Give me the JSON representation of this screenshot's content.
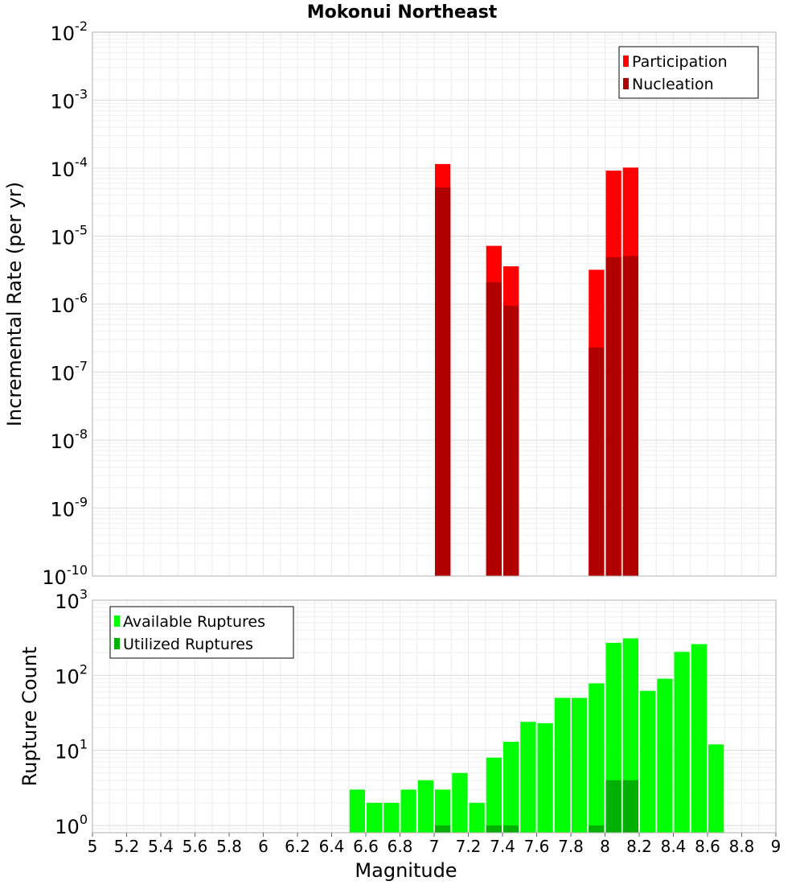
{
  "chart_data": [
    {
      "type": "bar",
      "title": "Mokonui Northeast",
      "xlabel": "",
      "ylabel": "Incremental Rate (per yr)",
      "y_scale": "log",
      "ylim": [
        1e-10,
        0.01
      ],
      "y_tick_exponents": [
        "-10",
        "-9",
        "-8",
        "-7",
        "-6",
        "-5",
        "-4",
        "-3",
        "-2"
      ],
      "y_tick_base": "10",
      "xlim": [
        5,
        9
      ],
      "bar_width": 0.1,
      "grid": true,
      "legend_position": "top-right",
      "series": [
        {
          "name": "Participation",
          "color": "#ff0000",
          "x": [
            7.05,
            7.35,
            7.45,
            7.95,
            8.05,
            8.15
          ],
          "values": [
            0.000115,
            7.2e-06,
            3.6e-06,
            3.2e-06,
            9.2e-05,
            0.000102
          ]
        },
        {
          "name": "Nucleation",
          "color": "#b00000",
          "x": [
            7.05,
            7.35,
            7.45,
            7.95,
            8.05,
            8.15
          ],
          "values": [
            5.2e-05,
            2.1e-06,
            9.5e-07,
            2.3e-07,
            4.9e-06,
            5.1e-06
          ]
        }
      ]
    },
    {
      "type": "bar",
      "title": "",
      "xlabel": "Magnitude",
      "ylabel": "Rupture Count",
      "y_scale": "log",
      "ylim": [
        0.8,
        1000
      ],
      "y_tick_exponents": [
        "0",
        "1",
        "2",
        "3"
      ],
      "y_tick_base": "10",
      "xlim": [
        5,
        9
      ],
      "x_ticks": [
        "5",
        "5.2",
        "5.4",
        "5.6",
        "5.8",
        "6",
        "6.2",
        "6.4",
        "6.6",
        "6.8",
        "7",
        "7.2",
        "7.4",
        "7.6",
        "7.8",
        "8",
        "8.2",
        "8.4",
        "8.6",
        "8.8",
        "9"
      ],
      "bar_width": 0.1,
      "grid": true,
      "legend_position": "top-left",
      "series": [
        {
          "name": "Available Ruptures",
          "color": "#00ff00",
          "x": [
            6.55,
            6.65,
            6.75,
            6.85,
            6.95,
            7.05,
            7.15,
            7.25,
            7.35,
            7.45,
            7.55,
            7.65,
            7.75,
            7.85,
            7.95,
            8.05,
            8.15,
            8.25,
            8.35,
            8.45,
            8.55,
            8.65
          ],
          "values": [
            3,
            2,
            2,
            3,
            4,
            3,
            5,
            2,
            8,
            13,
            24,
            23,
            50,
            50,
            78,
            270,
            310,
            62,
            90,
            205,
            260,
            12
          ]
        },
        {
          "name": "Utilized Ruptures",
          "color": "#00b000",
          "x": [
            7.05,
            7.35,
            7.45,
            7.95,
            8.05,
            8.15
          ],
          "values": [
            1,
            1,
            1,
            1,
            4,
            4
          ]
        }
      ]
    }
  ]
}
